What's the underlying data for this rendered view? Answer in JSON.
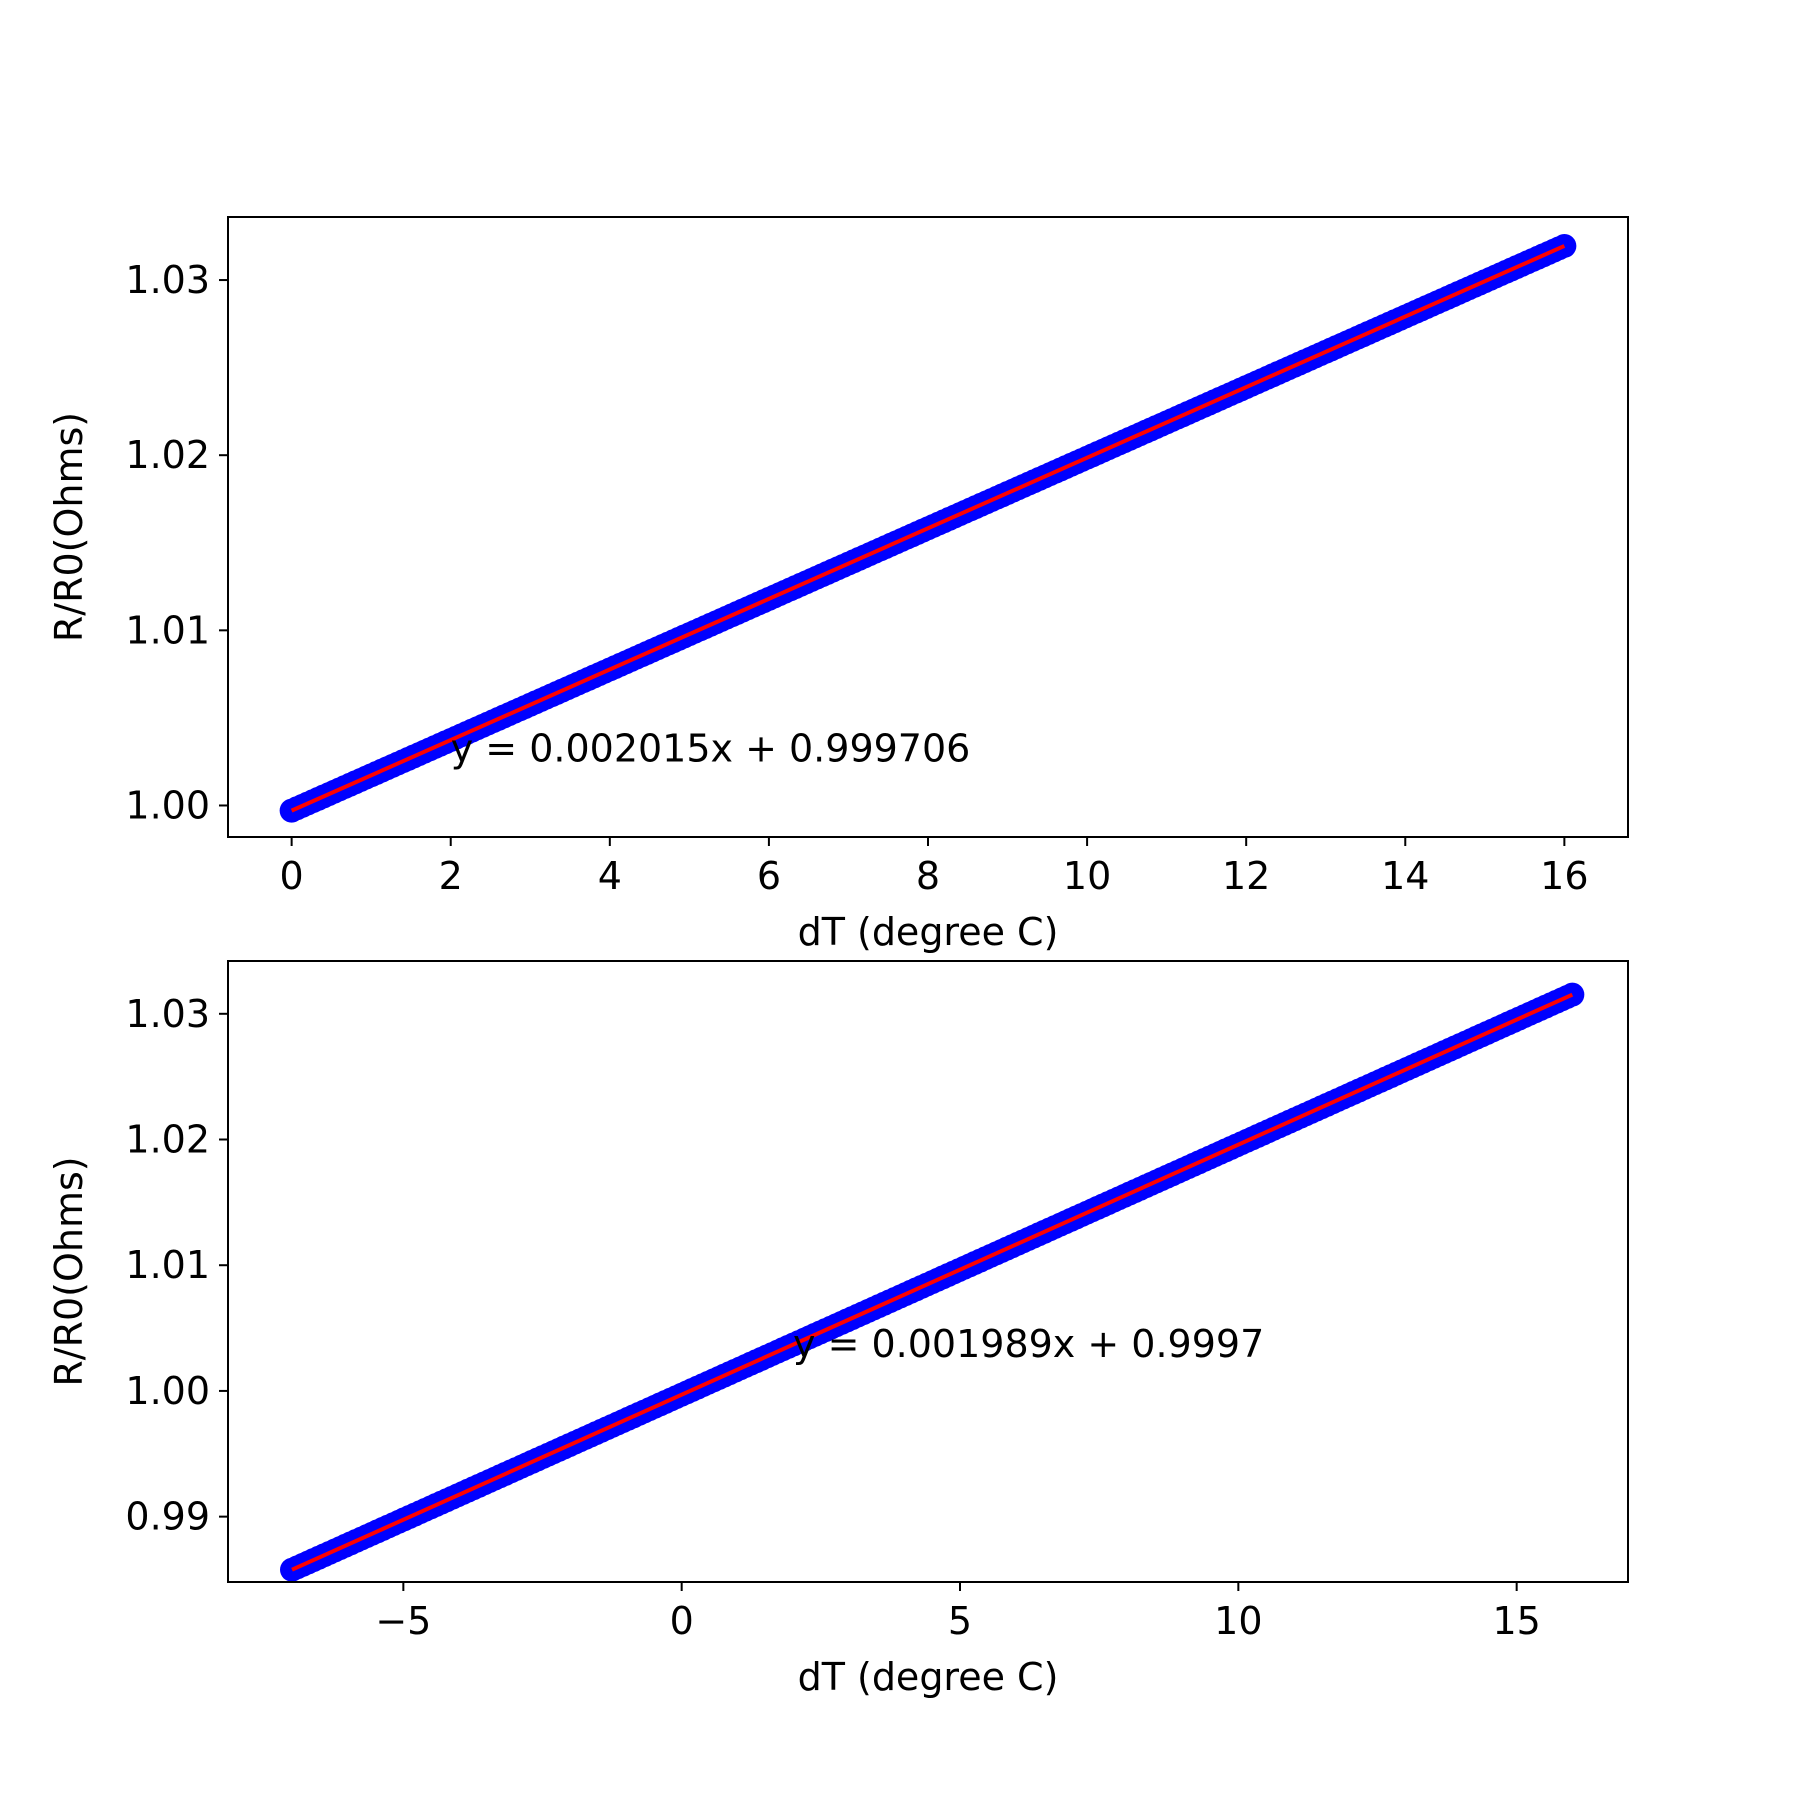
{
  "chart_data": [
    {
      "type": "scatter",
      "title": "",
      "xlabel": "dT (degree C)",
      "ylabel": "R/R0(Ohms)",
      "xlim": [
        -0.8,
        16.8
      ],
      "ylim": [
        0.9982,
        1.0336
      ],
      "xticks": [
        0,
        2,
        4,
        6,
        8,
        10,
        12,
        14,
        16
      ],
      "xtick_labels": [
        "0",
        "2",
        "4",
        "6",
        "8",
        "10",
        "12",
        "14",
        "16"
      ],
      "yticks": [
        1.0,
        1.01,
        1.02,
        1.03
      ],
      "ytick_labels": [
        "1.00",
        "1.01",
        "1.02",
        "1.03"
      ],
      "grid": false,
      "series": [
        {
          "kind": "scatter",
          "color": "#0000ff",
          "x_range": [
            0,
            16
          ],
          "slope": 0.002015,
          "intercept": 0.999706
        },
        {
          "kind": "line",
          "color": "#ff0000",
          "x": [
            0,
            16
          ],
          "y": [
            0.999706,
            1.031946
          ]
        }
      ],
      "annotations": [
        {
          "text": "y = 0.002015x + 0.999706",
          "x": 2,
          "y": 1.0025
        }
      ]
    },
    {
      "type": "scatter",
      "title": "",
      "xlabel": "dT (degree C)",
      "ylabel": "R/R0(Ohms)",
      "xlim": [
        -8.15,
        17.0
      ],
      "ylim": [
        0.9848,
        1.0342
      ],
      "xticks": [
        -5,
        0,
        5,
        10,
        15
      ],
      "xtick_labels": [
        "−5",
        "0",
        "5",
        "10",
        "15"
      ],
      "yticks": [
        0.99,
        1.0,
        1.01,
        1.02,
        1.03
      ],
      "ytick_labels": [
        "0.99",
        "1.00",
        "1.01",
        "1.02",
        "1.03"
      ],
      "grid": false,
      "series": [
        {
          "kind": "scatter",
          "color": "#0000ff",
          "x_range": [
            -7,
            16
          ],
          "slope": 0.001989,
          "intercept": 0.9997
        },
        {
          "kind": "line",
          "color": "#ff0000",
          "x": [
            -7,
            16
          ],
          "y": [
            0.985777,
            1.031524
          ]
        }
      ],
      "annotations": [
        {
          "text": "y = 0.001989x + 0.9997",
          "x": 2,
          "y": 1.0027
        }
      ]
    }
  ]
}
